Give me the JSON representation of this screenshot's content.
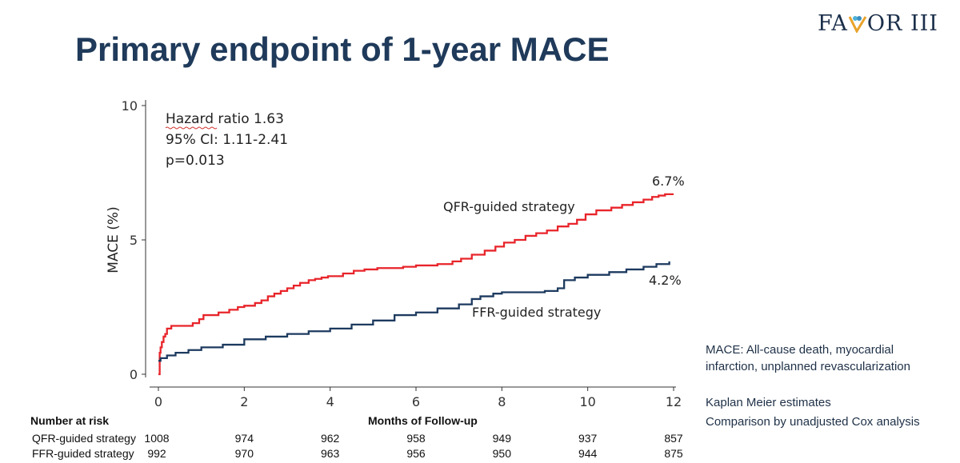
{
  "logo": {
    "text_left": "FA",
    "text_right": "OR III"
  },
  "slide_title": "Primary endpoint of 1-year MACE",
  "chart_data": {
    "type": "line",
    "subtype": "kaplan-meier step curve",
    "xlabel": "Months of Follow-up",
    "ylabel": "MACE (%)",
    "xlim": [
      0,
      12
    ],
    "ylim": [
      0,
      10
    ],
    "xticks": [
      0,
      2,
      4,
      6,
      8,
      10,
      12
    ],
    "yticks": [
      0,
      5,
      10
    ],
    "annotations": [
      "Hazard ratio 1.63",
      "95% CI: 1.11-2.41",
      "p=0.013"
    ],
    "series": [
      {
        "name": "QFR-guided strategy",
        "color": "#e8242a",
        "end_label": "6.7%",
        "x": [
          0,
          0.03,
          0.05,
          0.08,
          0.12,
          0.16,
          0.2,
          0.3,
          0.5,
          0.8,
          0.95,
          1.05,
          1.2,
          1.4,
          1.65,
          1.85,
          2.0,
          2.25,
          2.4,
          2.55,
          2.7,
          2.85,
          3.0,
          3.15,
          3.3,
          3.5,
          3.65,
          3.8,
          3.95,
          4.3,
          4.55,
          4.8,
          5.1,
          5.4,
          5.7,
          6.0,
          6.5,
          6.85,
          7.05,
          7.3,
          7.6,
          7.85,
          8.05,
          8.3,
          8.55,
          8.8,
          9.05,
          9.3,
          9.55,
          9.75,
          9.95,
          10.2,
          10.55,
          10.8,
          11.05,
          11.3,
          11.5,
          11.65,
          11.8,
          12.0
        ],
        "y": [
          0,
          0.8,
          1.0,
          1.2,
          1.4,
          1.5,
          1.7,
          1.8,
          1.8,
          1.9,
          2.05,
          2.2,
          2.2,
          2.3,
          2.4,
          2.5,
          2.55,
          2.65,
          2.75,
          2.9,
          3.0,
          3.1,
          3.2,
          3.3,
          3.4,
          3.5,
          3.55,
          3.6,
          3.65,
          3.75,
          3.85,
          3.9,
          3.95,
          3.95,
          4.0,
          4.05,
          4.1,
          4.2,
          4.3,
          4.45,
          4.6,
          4.75,
          4.9,
          5.0,
          5.15,
          5.25,
          5.35,
          5.5,
          5.6,
          5.75,
          5.95,
          6.1,
          6.2,
          6.3,
          6.4,
          6.5,
          6.6,
          6.65,
          6.7,
          6.7
        ]
      },
      {
        "name": "FFR-guided strategy",
        "color": "#1d3a5f",
        "end_label": "4.2%",
        "x": [
          0,
          0.05,
          0.2,
          0.4,
          0.7,
          1.0,
          1.5,
          2.0,
          2.5,
          3.0,
          3.5,
          4.0,
          4.5,
          5.0,
          5.5,
          6.0,
          6.5,
          7.0,
          7.3,
          7.5,
          7.8,
          8.0,
          8.5,
          9.0,
          9.3,
          9.45,
          9.7,
          10.0,
          10.5,
          10.9,
          11.3,
          11.6,
          11.9
        ],
        "y": [
          0.5,
          0.6,
          0.7,
          0.8,
          0.9,
          1.0,
          1.1,
          1.3,
          1.4,
          1.5,
          1.6,
          1.7,
          1.85,
          2.0,
          2.2,
          2.3,
          2.45,
          2.6,
          2.8,
          2.9,
          3.0,
          3.05,
          3.05,
          3.1,
          3.2,
          3.5,
          3.6,
          3.7,
          3.8,
          3.9,
          4.0,
          4.1,
          4.2
        ]
      }
    ]
  },
  "notes": {
    "mace_definition": "MACE: All-cause death, myocardial infarction, unplanned revascularization",
    "method": "Kaplan Meier estimates",
    "comparison": "Comparison by unadjusted Cox analysis"
  },
  "risk_table": {
    "header": "Number at risk",
    "xlabel": "Months of Follow-up",
    "rows": [
      {
        "label": "QFR-guided strategy",
        "values": [
          "1008",
          "974",
          "962",
          "958",
          "949",
          "937",
          "857"
        ]
      },
      {
        "label": "FFR-guided strategy",
        "values": [
          "992",
          "970",
          "963",
          "956",
          "950",
          "944",
          "875"
        ]
      }
    ]
  }
}
